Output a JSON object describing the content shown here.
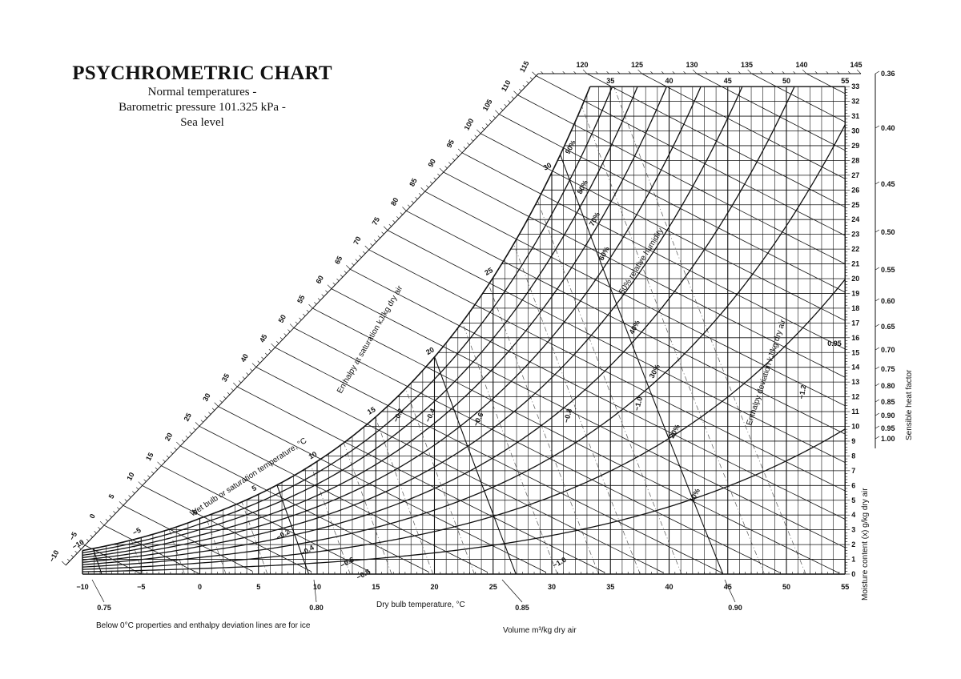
{
  "header": {
    "title": "PSYCHROMETRIC CHART",
    "subtitle_lines": [
      "Normal temperatures -",
      "Barometric pressure 101.325 kPa -",
      "Sea level"
    ]
  },
  "notes": {
    "ice_note": "Below 0°C properties and enthalpy deviation lines are for ice",
    "volume_label": "Volume m³/kg dry air",
    "enthalpy_label": "Enthalpy at saturation kJ/kg dry air",
    "wet_bulb_label": "Wet bulb or saturation temperature, °C",
    "deviation_label": "Enthalpy deviation kJ/kg dry air",
    "rh_label": "50% relative humidity"
  },
  "chart_data": {
    "type": "line",
    "title": "PSYCHROMETRIC CHART",
    "xlabel": "Dry bulb temperature, °C",
    "ylabel": "Moisture content (x) g/kg dry air",
    "y2label": "Sensible heat factor",
    "xlim": [
      -10,
      55
    ],
    "ylim": [
      0,
      33
    ],
    "pressure_kpa": 101.325,
    "grid": true,
    "x_ticks": [
      "−10",
      "−5",
      "0",
      "5",
      "10",
      "15",
      "20",
      "25",
      "30",
      "35",
      "40",
      "45",
      "50",
      "55"
    ],
    "x_top_ticks": [
      "35",
      "40",
      "45",
      "50",
      "55"
    ],
    "y_ticks": [
      "0",
      "1",
      "2",
      "3",
      "4",
      "5",
      "6",
      "7",
      "8",
      "9",
      "10",
      "11",
      "12",
      "13",
      "14",
      "15",
      "16",
      "17",
      "18",
      "19",
      "20",
      "21",
      "22",
      "23",
      "24",
      "25",
      "26",
      "27",
      "28",
      "29",
      "30",
      "31",
      "32",
      "33"
    ],
    "relative_humidity_curves": [
      10,
      20,
      30,
      40,
      50,
      60,
      70,
      80,
      90,
      100
    ],
    "rh_labels": [
      "10%",
      "20%",
      "30%",
      "40%",
      "60%",
      "70%",
      "80%",
      "90%"
    ],
    "enthalpy_scale_ticks": [
      "−10",
      "−5",
      "0",
      "5",
      "10",
      "15",
      "20",
      "25",
      "30",
      "35",
      "40",
      "45",
      "50",
      "55",
      "60",
      "65",
      "70",
      "75",
      "80",
      "85",
      "90",
      "95",
      "100",
      "105",
      "110",
      "115",
      "120",
      "125",
      "130",
      "135",
      "140",
      "145"
    ],
    "wet_bulb_labels": [
      "−10",
      "−5",
      "0",
      "5",
      "10",
      "15",
      "20",
      "25",
      "30"
    ],
    "volume_lines": [
      0.75,
      0.76,
      0.77,
      0.78,
      0.79,
      0.8,
      0.81,
      0.82,
      0.83,
      0.84,
      0.85,
      0.86,
      0.87,
      0.88,
      0.89,
      0.9,
      0.91,
      0.92
    ],
    "volume_labels": [
      "0.75",
      "0.80",
      "0.85",
      "0.90"
    ],
    "deviation_labels": [
      "−0.2",
      "−0.4",
      "−0.6",
      "−0.8",
      "−1.0",
      "−0.2",
      "−0.4",
      "−0.6",
      "−0.8",
      "−1.0",
      "−1.2",
      "0.95"
    ],
    "sensible_heat_factor_ticks": [
      "0.36",
      "0.40",
      "0.45",
      "0.50",
      "0.55",
      "0.60",
      "0.65",
      "0.70",
      "0.75",
      "0.80",
      "0.85",
      "0.90",
      "0.95",
      "1.00"
    ],
    "colors": {
      "lines": "#111111",
      "background": "#ffffff",
      "dashed": "#555555"
    }
  }
}
